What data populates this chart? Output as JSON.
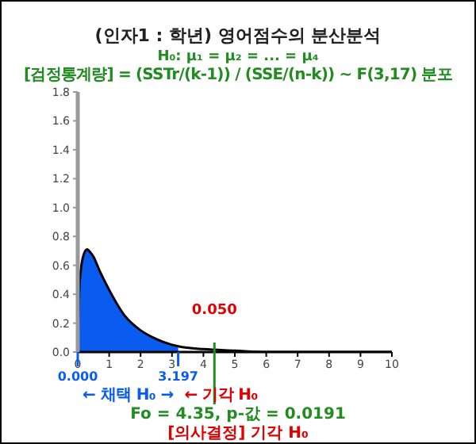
{
  "chart_data": {
    "type": "line",
    "title": "(인자1 : 학년) 영어점수의 분산분석",
    "subtitle": "H₀: μ₁ = μ₂ = ... = μ₄",
    "x": [
      0,
      0.05,
      0.1,
      0.2,
      0.3,
      0.4,
      0.5,
      0.7,
      1,
      1.5,
      2,
      2.5,
      3,
      3.197,
      4,
      5,
      6,
      7,
      8,
      9,
      10
    ],
    "series": [
      {
        "type": "area",
        "color": "#0a5cf0",
        "x": [
          0,
          0.05,
          0.1,
          0.2,
          0.3,
          0.4,
          0.5,
          0.7,
          1,
          1.5,
          2,
          2.5,
          3,
          3.197
        ],
        "values": [
          0,
          0.44,
          0.57,
          0.68,
          0.71,
          0.69,
          0.66,
          0.56,
          0.43,
          0.25,
          0.15,
          0.09,
          0.05,
          0.04
        ]
      },
      {
        "color": "#000000",
        "values": [
          0,
          0.44,
          0.57,
          0.68,
          0.71,
          0.69,
          0.66,
          0.56,
          0.43,
          0.25,
          0.15,
          0.09,
          0.05,
          0.04,
          0.02,
          0.01,
          0,
          0,
          0,
          0,
          0
        ]
      }
    ],
    "xlim": [
      0,
      10
    ],
    "xticks": [
      0,
      1,
      2,
      3,
      4,
      5,
      6,
      7,
      8,
      9,
      10
    ],
    "ylim": [
      0,
      1.8
    ],
    "yticks": [
      {
        "value": 0,
        "label": "0.0"
      },
      {
        "value": 0.2,
        "label": "0.2"
      },
      {
        "value": 0.4,
        "label": "0.4"
      },
      {
        "value": 0.6,
        "label": "0.6"
      },
      {
        "value": 0.8,
        "label": "0.8"
      },
      {
        "value": 1,
        "label": "1.0"
      },
      {
        "value": 1.2,
        "label": "1.2"
      },
      {
        "value": 1.4,
        "label": "1.4"
      },
      {
        "value": 1.6,
        "label": "1.6"
      },
      {
        "value": 1.8,
        "label": "1.8"
      }
    ],
    "ref_lines": [
      {
        "axis": "x",
        "value": 4.35,
        "label": "Fo = 4.35, p-값 = 0.0191",
        "color": "#228b22"
      }
    ],
    "annotations": [
      {
        "text": "0.000",
        "x": 0,
        "y": 0
      },
      {
        "text": "3.197",
        "x": 3.197,
        "y": 0
      },
      "[검정통계량] = (SSTr/(k-1)) / (SSE/(n-k)) ~ F(3,17) 분포",
      "← 채택 H₀ →",
      "← 기각 H₀",
      "0.050",
      "[의사결정] 기각 H₀"
    ],
    "grid": false,
    "legend": false,
    "marker": "none"
  }
}
